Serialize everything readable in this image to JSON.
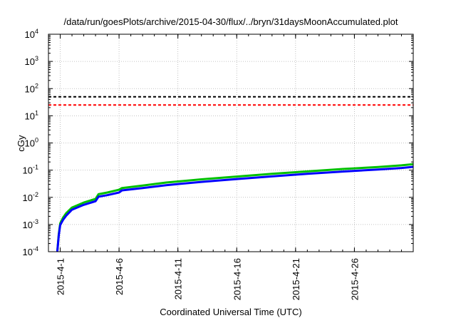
{
  "chart_data": {
    "type": "line",
    "title": "/data/run/goesPlots/archive/2015-04-30/flux/../bryn/31daysMoonAccumulated.plot",
    "xlabel": "Coordinated Universal Time (UTC)",
    "ylabel": "cGy",
    "yscale": "log",
    "ylim": [
      0.0001,
      10000
    ],
    "xlim": [
      "2015-03-31",
      "2015-05-01"
    ],
    "grid": true,
    "xticks": [
      {
        "date": "2015-04-01",
        "label": "2015-4-1"
      },
      {
        "date": "2015-04-06",
        "label": "2015-4-6"
      },
      {
        "date": "2015-04-11",
        "label": "2015-4-11"
      },
      {
        "date": "2015-04-16",
        "label": "2015-4-16"
      },
      {
        "date": "2015-04-21",
        "label": "2015-4-21"
      },
      {
        "date": "2015-04-26",
        "label": "2015-4-26"
      }
    ],
    "yticks": [
      {
        "value": 0.0001,
        "base": "10",
        "exp": "-4"
      },
      {
        "value": 0.001,
        "base": "10",
        "exp": "-3"
      },
      {
        "value": 0.01,
        "base": "10",
        "exp": "-2"
      },
      {
        "value": 0.1,
        "base": "10",
        "exp": "-1"
      },
      {
        "value": 1,
        "base": "10",
        "exp": "0"
      },
      {
        "value": 10,
        "base": "10",
        "exp": "1"
      },
      {
        "value": 100,
        "base": "10",
        "exp": "2"
      },
      {
        "value": 1000,
        "base": "10",
        "exp": "3"
      },
      {
        "value": 10000,
        "base": "10",
        "exp": "4"
      }
    ],
    "thresholds": [
      {
        "value": 50,
        "color": "#000000"
      },
      {
        "value": 25,
        "color": "#ff0000"
      }
    ],
    "series": [
      {
        "color": "#00c000",
        "points": [
          [
            "2015-03-31T18:00",
            0.0001
          ],
          [
            "2015-03-31T21:00",
            0.00045
          ],
          [
            "2015-04-01T00:00",
            0.0011
          ],
          [
            "2015-04-01T06:00",
            0.0018
          ],
          [
            "2015-04-01T12:00",
            0.0026
          ],
          [
            "2015-04-02T00:00",
            0.0042
          ],
          [
            "2015-04-03T00:00",
            0.0064
          ],
          [
            "2015-04-04T00:00",
            0.0088
          ],
          [
            "2015-04-04T06:00",
            0.013
          ],
          [
            "2015-04-05T00:00",
            0.015
          ],
          [
            "2015-04-06T00:00",
            0.019
          ],
          [
            "2015-04-06T06:00",
            0.022
          ],
          [
            "2015-04-08T00:00",
            0.027
          ],
          [
            "2015-04-10T00:00",
            0.035
          ],
          [
            "2015-04-13T00:00",
            0.046
          ],
          [
            "2015-04-16T00:00",
            0.058
          ],
          [
            "2015-04-19T00:00",
            0.073
          ],
          [
            "2015-04-22T00:00",
            0.09
          ],
          [
            "2015-04-25T00:00",
            0.11
          ],
          [
            "2015-04-28T00:00",
            0.13
          ],
          [
            "2015-04-30T00:00",
            0.15
          ],
          [
            "2015-05-01T00:00",
            0.165
          ]
        ]
      },
      {
        "color": "#0000ff",
        "points": [
          [
            "2015-03-31T18:00",
            0.0001
          ],
          [
            "2015-03-31T21:00",
            0.0004
          ],
          [
            "2015-04-01T00:00",
            0.00095
          ],
          [
            "2015-04-01T06:00",
            0.0015
          ],
          [
            "2015-04-01T12:00",
            0.0021
          ],
          [
            "2015-04-02T00:00",
            0.0035
          ],
          [
            "2015-04-03T00:00",
            0.0053
          ],
          [
            "2015-04-04T00:00",
            0.0072
          ],
          [
            "2015-04-04T06:00",
            0.0105
          ],
          [
            "2015-04-05T00:00",
            0.012
          ],
          [
            "2015-04-06T00:00",
            0.015
          ],
          [
            "2015-04-06T06:00",
            0.018
          ],
          [
            "2015-04-08T00:00",
            0.022
          ],
          [
            "2015-04-10T00:00",
            0.028
          ],
          [
            "2015-04-13T00:00",
            0.037
          ],
          [
            "2015-04-16T00:00",
            0.047
          ],
          [
            "2015-04-19T00:00",
            0.059
          ],
          [
            "2015-04-22T00:00",
            0.073
          ],
          [
            "2015-04-25T00:00",
            0.089
          ],
          [
            "2015-04-28T00:00",
            0.106
          ],
          [
            "2015-04-30T00:00",
            0.12
          ],
          [
            "2015-05-01T00:00",
            0.132
          ]
        ]
      }
    ]
  }
}
